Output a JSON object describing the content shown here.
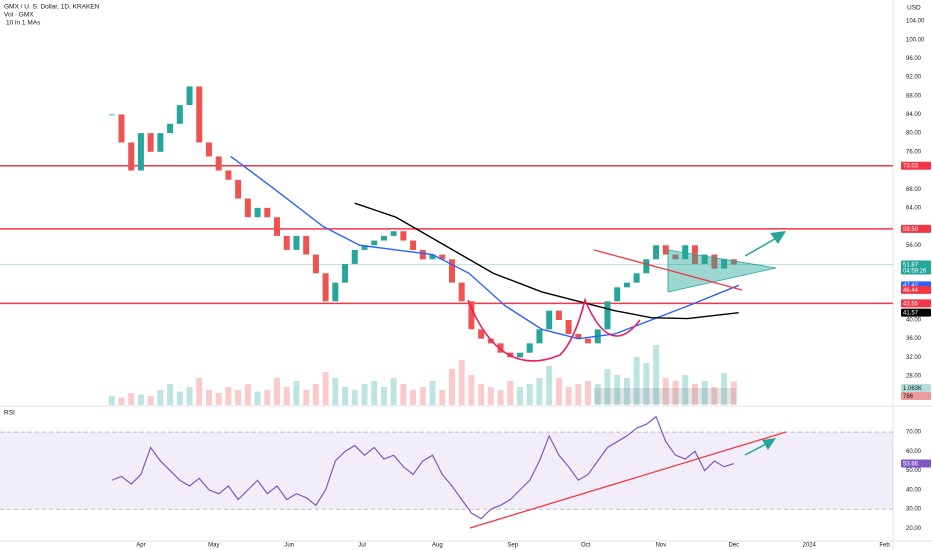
{
  "header": {
    "title": "GMX / U. S. Dollar, 1D, KRAKEN",
    "volume_legend": "Vol · GMX",
    "ma_legend": "10 in 1 MAs",
    "currency": "USD",
    "rsi_legend": "RSI"
  },
  "chart_data": [
    {
      "type": "candlestick",
      "x": [
        -12,
        -8,
        -4,
        0,
        4,
        8,
        12,
        16,
        20,
        24,
        28,
        32,
        36,
        40,
        44,
        48,
        52,
        56,
        60,
        64,
        68,
        72,
        76,
        80,
        84,
        88,
        92,
        96,
        100,
        104,
        108,
        112,
        116,
        120,
        124,
        128,
        132,
        136,
        140,
        144,
        148,
        152,
        156,
        160,
        164,
        168,
        172,
        176,
        180,
        184,
        188,
        192,
        196,
        200,
        204,
        208,
        212,
        216,
        220,
        224,
        228,
        232,
        236,
        240,
        244
      ],
      "values": [
        84,
        78,
        72,
        80,
        76,
        80,
        82,
        86,
        90,
        78,
        75,
        72,
        70,
        66,
        62,
        64,
        62,
        58,
        55,
        58,
        54,
        50,
        44,
        48,
        52,
        55,
        56,
        57,
        58,
        59,
        57,
        55,
        53,
        54,
        53,
        48,
        44,
        38,
        36,
        35,
        33,
        32,
        33,
        35,
        38,
        42,
        40,
        37,
        36,
        35,
        38,
        44,
        47,
        48,
        50,
        53,
        56,
        54,
        53,
        56,
        52,
        54,
        51,
        53,
        51.87
      ],
      "volume": [
        300,
        250,
        400,
        350,
        300,
        500,
        700,
        450,
        600,
        900,
        500,
        400,
        600,
        500,
        700,
        450,
        500,
        900,
        600,
        800,
        500,
        700,
        1100,
        900,
        600,
        500,
        700,
        800,
        600,
        900,
        700,
        500,
        600,
        800,
        500,
        1200,
        1500,
        1000,
        700,
        600,
        500,
        800,
        600,
        700,
        900,
        1300,
        900,
        600,
        700,
        800,
        700,
        1200,
        1000,
        900,
        1600,
        1400,
        2000,
        900,
        800,
        1000,
        700,
        800,
        600,
        1063,
        786
      ],
      "volume_labels": [
        {
          "value": 1063,
          "label": "1.063K"
        },
        786
      ],
      "xlim": [
        -58,
        309.5
      ],
      "ylim": [
        21.8,
        108.5
      ],
      "xticks": [
        {
          "value": 0,
          "label": "Apr"
        },
        {
          "value": 30,
          "label": "May"
        },
        {
          "value": 61,
          "label": "Jun"
        },
        {
          "value": 91,
          "label": "Jul"
        },
        {
          "value": 122,
          "label": "Aug"
        },
        {
          "value": 153,
          "label": "Sep"
        },
        {
          "value": 183,
          "label": "Oct"
        },
        {
          "value": 214,
          "label": "Nov"
        },
        {
          "value": 244,
          "label": "Dec"
        },
        {
          "value": 275,
          "label": "2024"
        },
        {
          "value": 306,
          "label": "Feb"
        }
      ],
      "yticks": [
        {
          "value": 104,
          "label": "104.00"
        },
        {
          "value": 100,
          "label": "100.00"
        },
        {
          "value": 96,
          "label": "96.00"
        },
        {
          "value": 92,
          "label": "92.00"
        },
        {
          "value": 88,
          "label": "88.00"
        },
        {
          "value": 84,
          "label": "84.00"
        },
        {
          "value": 80,
          "label": "80.00"
        },
        {
          "value": 76,
          "label": "76.00"
        },
        {
          "value": 68,
          "label": "68.00"
        },
        {
          "value": 64,
          "label": "64.00"
        },
        {
          "value": 56,
          "label": "56.00"
        },
        {
          "value": 40,
          "label": "40.00"
        },
        {
          "value": 36,
          "label": "36.00"
        },
        {
          "value": 32,
          "label": "32.00"
        },
        {
          "value": 28,
          "label": "28.00"
        }
      ],
      "up_color": "#26a69a",
      "down_color": "#ef5350",
      "levels": [
        73.03,
        {
          "value": 59.5,
          "label": "59.50"
        },
        43.55
      ],
      "level_color": "#f23645",
      "current": 51.87,
      "countdown": "04:59:26",
      "ma_lines": [
        {
          "color": "#2962ff",
          "x": [
            37,
            55,
            75,
            90,
            105,
            120,
            135,
            150,
            165,
            180,
            195,
            210,
            225,
            246
          ],
          "values": [
            75,
            68,
            60,
            56,
            55,
            54,
            50,
            43,
            38,
            36,
            37,
            40,
            43,
            47.42
          ]
        },
        {
          "color": "#000000",
          "x": [
            88,
            105,
            125,
            145,
            165,
            180,
            195,
            210,
            225,
            246
          ],
          "values": [
            65,
            62,
            56,
            50,
            46,
            44,
            42,
            40.5,
            40.3,
            41.57
          ]
        }
      ],
      "trend_badge": 46.44
    },
    {
      "type": "line",
      "x": [
        -12,
        -8,
        -4,
        0,
        4,
        8,
        12,
        16,
        20,
        24,
        28,
        32,
        36,
        40,
        44,
        48,
        52,
        56,
        60,
        64,
        68,
        72,
        76,
        80,
        84,
        88,
        92,
        96,
        100,
        104,
        108,
        112,
        116,
        120,
        124,
        128,
        132,
        136,
        140,
        144,
        148,
        152,
        156,
        160,
        164,
        168,
        172,
        176,
        180,
        184,
        188,
        192,
        196,
        200,
        204,
        208,
        212,
        216,
        220,
        224,
        228,
        232,
        236,
        240,
        244
      ],
      "values": [
        45,
        47,
        43,
        48,
        62,
        55,
        50,
        45,
        42,
        46,
        40,
        38,
        42,
        35,
        40,
        45,
        38,
        42,
        35,
        38,
        36,
        32,
        40,
        55,
        60,
        63,
        58,
        62,
        56,
        58,
        52,
        48,
        55,
        58,
        48,
        42,
        35,
        28,
        25,
        30,
        32,
        35,
        40,
        45,
        55,
        68,
        58,
        52,
        45,
        48,
        55,
        62,
        65,
        68,
        72,
        74,
        78,
        65,
        58,
        56,
        60,
        50,
        55,
        52,
        53.66
      ],
      "value_labels": [
        {
          "value": 53.66,
          "label": "53.66"
        }
      ],
      "color": "#7e57c2",
      "band": [
        30,
        70
      ],
      "xlim": [
        -58,
        309.5
      ],
      "ylim": [
        14,
        83
      ],
      "yticks": [
        {
          "value": 70,
          "label": "70.00"
        },
        {
          "value": 60,
          "label": "60.00"
        },
        {
          "value": 50,
          "label": "50.00"
        },
        {
          "value": 40,
          "label": "40.00"
        },
        {
          "value": 30,
          "label": "30.00"
        },
        {
          "value": 20,
          "label": "20.00"
        }
      ]
    }
  ]
}
